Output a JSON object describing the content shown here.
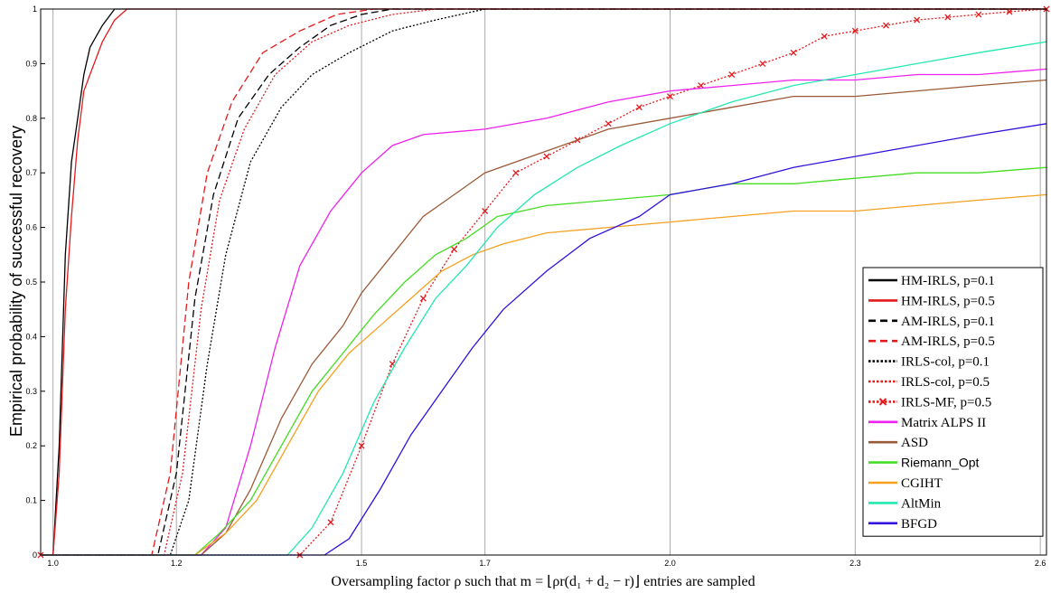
{
  "chart_data": {
    "type": "line",
    "xlabel": "Oversampling factor ρ such that m = ⌊ρr(d₁ + d₂ − r)⌋ entries are sampled",
    "ylabel": "Empirical probability of successful recovery",
    "xlim": [
      0.98,
      2.61
    ],
    "ylim": [
      0,
      1
    ],
    "x_ticks": [
      "1.0",
      "1.2",
      "1.5",
      "1.7",
      "2.0",
      "2.3",
      "2.6"
    ],
    "x_tick_values": [
      1.0,
      1.2,
      1.5,
      1.7,
      2.0,
      2.3,
      2.6
    ],
    "y_ticks": [
      "0",
      "0.1",
      "0.2",
      "0.3",
      "0.4",
      "0.5",
      "0.6",
      "0.7",
      "0.8",
      "0.9",
      "1"
    ],
    "grid": "vertical lines at x ticks",
    "legend_position": "bottom-right",
    "series": [
      {
        "name": "HM-IRLS, p=0.1",
        "color": "#000000",
        "style": "solid",
        "points": [
          [
            0.98,
            0
          ],
          [
            1.0,
            0
          ],
          [
            1.01,
            0.2
          ],
          [
            1.02,
            0.55
          ],
          [
            1.03,
            0.72
          ],
          [
            1.04,
            0.8
          ],
          [
            1.05,
            0.88
          ],
          [
            1.06,
            0.93
          ],
          [
            1.08,
            0.97
          ],
          [
            1.1,
            1.0
          ],
          [
            2.61,
            1.0
          ]
        ]
      },
      {
        "name": "HM-IRLS, p=0.5",
        "color": "#e31a1c",
        "style": "solid",
        "points": [
          [
            0.98,
            0
          ],
          [
            1.0,
            0
          ],
          [
            1.01,
            0.15
          ],
          [
            1.02,
            0.45
          ],
          [
            1.03,
            0.62
          ],
          [
            1.04,
            0.76
          ],
          [
            1.05,
            0.85
          ],
          [
            1.06,
            0.88
          ],
          [
            1.08,
            0.94
          ],
          [
            1.1,
            0.98
          ],
          [
            1.12,
            1.0
          ],
          [
            2.61,
            1.0
          ]
        ]
      },
      {
        "name": "AM-IRLS, p=0.1",
        "color": "#000000",
        "style": "dashed",
        "points": [
          [
            0.98,
            0
          ],
          [
            1.17,
            0
          ],
          [
            1.2,
            0.15
          ],
          [
            1.23,
            0.47
          ],
          [
            1.26,
            0.66
          ],
          [
            1.3,
            0.8
          ],
          [
            1.35,
            0.88
          ],
          [
            1.4,
            0.93
          ],
          [
            1.45,
            0.97
          ],
          [
            1.5,
            0.99
          ],
          [
            1.55,
            1.0
          ],
          [
            2.61,
            1.0
          ]
        ]
      },
      {
        "name": "AM-IRLS, p=0.5",
        "color": "#e31a1c",
        "style": "dashed",
        "points": [
          [
            0.98,
            0
          ],
          [
            1.16,
            0
          ],
          [
            1.19,
            0.15
          ],
          [
            1.22,
            0.5
          ],
          [
            1.25,
            0.7
          ],
          [
            1.29,
            0.83
          ],
          [
            1.34,
            0.92
          ],
          [
            1.4,
            0.96
          ],
          [
            1.46,
            0.99
          ],
          [
            1.52,
            1.0
          ],
          [
            2.61,
            1.0
          ]
        ]
      },
      {
        "name": "IRLS-col, p=0.1",
        "color": "#000000",
        "style": "dotted",
        "points": [
          [
            0.98,
            0
          ],
          [
            1.19,
            0
          ],
          [
            1.22,
            0.1
          ],
          [
            1.25,
            0.35
          ],
          [
            1.28,
            0.55
          ],
          [
            1.32,
            0.72
          ],
          [
            1.37,
            0.82
          ],
          [
            1.42,
            0.88
          ],
          [
            1.48,
            0.92
          ],
          [
            1.55,
            0.96
          ],
          [
            1.62,
            0.98
          ],
          [
            1.7,
            1.0
          ],
          [
            2.61,
            1.0
          ]
        ]
      },
      {
        "name": "IRLS-col, p=0.5",
        "color": "#e31a1c",
        "style": "dotted",
        "points": [
          [
            0.98,
            0
          ],
          [
            1.18,
            0
          ],
          [
            1.21,
            0.15
          ],
          [
            1.24,
            0.45
          ],
          [
            1.27,
            0.65
          ],
          [
            1.31,
            0.78
          ],
          [
            1.36,
            0.88
          ],
          [
            1.42,
            0.94
          ],
          [
            1.48,
            0.97
          ],
          [
            1.55,
            0.99
          ],
          [
            1.62,
            1.0
          ],
          [
            2.61,
            1.0
          ]
        ]
      },
      {
        "name": "IRLS-MF, p=0.5",
        "color": "#e31a1c",
        "style": "dotted-x",
        "points": [
          [
            0.98,
            0
          ],
          [
            1.4,
            0
          ],
          [
            1.45,
            0.06
          ],
          [
            1.5,
            0.2
          ],
          [
            1.55,
            0.35
          ],
          [
            1.6,
            0.47
          ],
          [
            1.65,
            0.56
          ],
          [
            1.7,
            0.63
          ],
          [
            1.75,
            0.7
          ],
          [
            1.8,
            0.73
          ],
          [
            1.85,
            0.76
          ],
          [
            1.9,
            0.79
          ],
          [
            1.95,
            0.82
          ],
          [
            2.0,
            0.84
          ],
          [
            2.05,
            0.86
          ],
          [
            2.1,
            0.88
          ],
          [
            2.15,
            0.9
          ],
          [
            2.2,
            0.92
          ],
          [
            2.25,
            0.95
          ],
          [
            2.3,
            0.96
          ],
          [
            2.35,
            0.97
          ],
          [
            2.4,
            0.98
          ],
          [
            2.45,
            0.985
          ],
          [
            2.5,
            0.99
          ],
          [
            2.55,
            0.995
          ],
          [
            2.61,
            1.0
          ]
        ]
      },
      {
        "name": "Matrix ALPS II",
        "color": "#ee22ee",
        "style": "solid",
        "points": [
          [
            0.98,
            0
          ],
          [
            1.24,
            0
          ],
          [
            1.28,
            0.05
          ],
          [
            1.32,
            0.2
          ],
          [
            1.36,
            0.38
          ],
          [
            1.4,
            0.53
          ],
          [
            1.45,
            0.63
          ],
          [
            1.5,
            0.7
          ],
          [
            1.55,
            0.75
          ],
          [
            1.6,
            0.77
          ],
          [
            1.7,
            0.78
          ],
          [
            1.8,
            0.8
          ],
          [
            1.9,
            0.83
          ],
          [
            2.0,
            0.85
          ],
          [
            2.1,
            0.86
          ],
          [
            2.2,
            0.87
          ],
          [
            2.3,
            0.87
          ],
          [
            2.4,
            0.88
          ],
          [
            2.5,
            0.88
          ],
          [
            2.61,
            0.89
          ]
        ]
      },
      {
        "name": "ASD",
        "color": "#9b5a36",
        "style": "solid",
        "points": [
          [
            0.98,
            0
          ],
          [
            1.24,
            0
          ],
          [
            1.28,
            0.04
          ],
          [
            1.32,
            0.12
          ],
          [
            1.37,
            0.25
          ],
          [
            1.42,
            0.35
          ],
          [
            1.47,
            0.42
          ],
          [
            1.5,
            0.48
          ],
          [
            1.55,
            0.55
          ],
          [
            1.6,
            0.62
          ],
          [
            1.65,
            0.66
          ],
          [
            1.7,
            0.7
          ],
          [
            1.8,
            0.74
          ],
          [
            1.9,
            0.78
          ],
          [
            2.0,
            0.8
          ],
          [
            2.1,
            0.82
          ],
          [
            2.2,
            0.84
          ],
          [
            2.3,
            0.84
          ],
          [
            2.4,
            0.85
          ],
          [
            2.5,
            0.86
          ],
          [
            2.61,
            0.87
          ]
        ]
      },
      {
        "name": "Riemann_Opt",
        "color": "#44dd22",
        "style": "solid",
        "points": [
          [
            0.98,
            0
          ],
          [
            1.23,
            0
          ],
          [
            1.27,
            0.04
          ],
          [
            1.32,
            0.1
          ],
          [
            1.37,
            0.2
          ],
          [
            1.42,
            0.3
          ],
          [
            1.47,
            0.37
          ],
          [
            1.52,
            0.44
          ],
          [
            1.57,
            0.5
          ],
          [
            1.62,
            0.55
          ],
          [
            1.67,
            0.58
          ],
          [
            1.72,
            0.62
          ],
          [
            1.8,
            0.64
          ],
          [
            1.9,
            0.65
          ],
          [
            2.0,
            0.66
          ],
          [
            2.1,
            0.68
          ],
          [
            2.2,
            0.68
          ],
          [
            2.3,
            0.69
          ],
          [
            2.4,
            0.7
          ],
          [
            2.5,
            0.7
          ],
          [
            2.61,
            0.71
          ]
        ]
      },
      {
        "name": "CGIHT",
        "color": "#f5a020",
        "style": "solid",
        "points": [
          [
            0.98,
            0
          ],
          [
            1.23,
            0
          ],
          [
            1.28,
            0.04
          ],
          [
            1.33,
            0.1
          ],
          [
            1.38,
            0.2
          ],
          [
            1.43,
            0.3
          ],
          [
            1.48,
            0.37
          ],
          [
            1.53,
            0.42
          ],
          [
            1.58,
            0.47
          ],
          [
            1.63,
            0.52
          ],
          [
            1.68,
            0.55
          ],
          [
            1.73,
            0.57
          ],
          [
            1.8,
            0.59
          ],
          [
            1.9,
            0.6
          ],
          [
            2.0,
            0.61
          ],
          [
            2.1,
            0.62
          ],
          [
            2.2,
            0.63
          ],
          [
            2.3,
            0.63
          ],
          [
            2.4,
            0.64
          ],
          [
            2.5,
            0.65
          ],
          [
            2.61,
            0.66
          ]
        ]
      },
      {
        "name": "AltMin",
        "color": "#22e8b0",
        "style": "solid",
        "points": [
          [
            0.98,
            0
          ],
          [
            1.38,
            0
          ],
          [
            1.42,
            0.05
          ],
          [
            1.47,
            0.15
          ],
          [
            1.52,
            0.28
          ],
          [
            1.57,
            0.38
          ],
          [
            1.62,
            0.47
          ],
          [
            1.67,
            0.53
          ],
          [
            1.72,
            0.6
          ],
          [
            1.78,
            0.66
          ],
          [
            1.85,
            0.71
          ],
          [
            1.92,
            0.75
          ],
          [
            2.0,
            0.79
          ],
          [
            2.1,
            0.83
          ],
          [
            2.2,
            0.86
          ],
          [
            2.3,
            0.88
          ],
          [
            2.4,
            0.9
          ],
          [
            2.5,
            0.92
          ],
          [
            2.61,
            0.94
          ]
        ]
      },
      {
        "name": "BFGD",
        "color": "#3311dd",
        "style": "solid",
        "points": [
          [
            0.98,
            0
          ],
          [
            1.44,
            0
          ],
          [
            1.48,
            0.03
          ],
          [
            1.53,
            0.12
          ],
          [
            1.58,
            0.22
          ],
          [
            1.63,
            0.3
          ],
          [
            1.68,
            0.38
          ],
          [
            1.73,
            0.45
          ],
          [
            1.8,
            0.52
          ],
          [
            1.87,
            0.58
          ],
          [
            1.95,
            0.62
          ],
          [
            2.0,
            0.66
          ],
          [
            2.1,
            0.68
          ],
          [
            2.2,
            0.71
          ],
          [
            2.3,
            0.73
          ],
          [
            2.4,
            0.75
          ],
          [
            2.5,
            0.77
          ],
          [
            2.61,
            0.79
          ]
        ]
      }
    ]
  }
}
